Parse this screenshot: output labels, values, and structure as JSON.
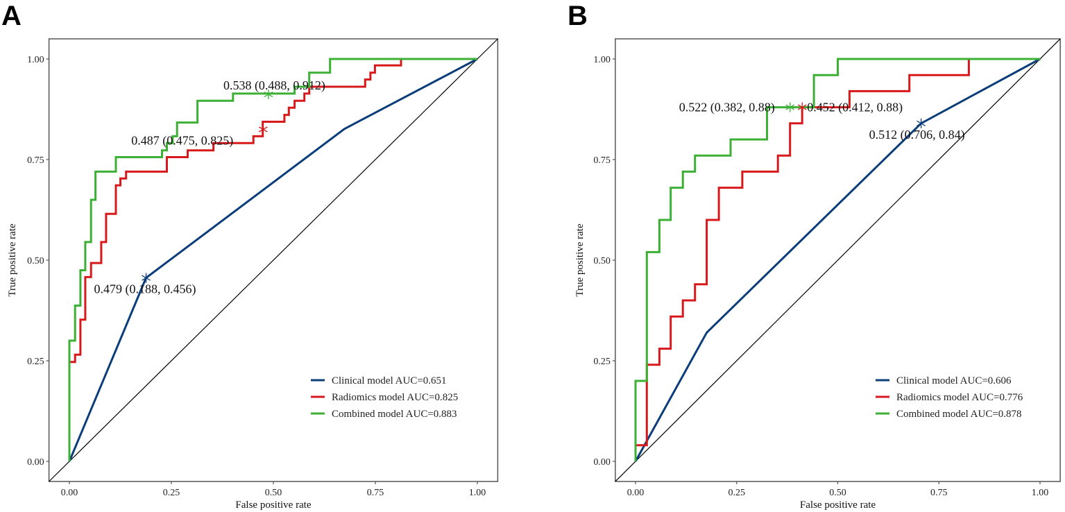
{
  "chart_data": [
    {
      "panel_label": "A",
      "type": "line",
      "xlabel": "False positive rate",
      "ylabel": "True positive rate",
      "xlim": [
        0,
        1
      ],
      "ylim": [
        0,
        1
      ],
      "xticks": [
        "0.00",
        "0.25",
        "0.50",
        "0.75",
        "1.00"
      ],
      "yticks": [
        "0.00",
        "0.25",
        "0.50",
        "0.75",
        "1.00"
      ],
      "legend_position": "bottom-right",
      "reference_line": "diagonal",
      "series": [
        {
          "name": "Clinical model AUC=0.651",
          "color": "#0b3d7a",
          "points": [
            [
              0,
              0
            ],
            [
              0.188,
              0.456
            ],
            [
              0.674,
              0.826
            ],
            [
              1,
              1
            ]
          ],
          "cutoff": {
            "x": 0.188,
            "y": 0.456,
            "label": "0.479 (0.188, 0.456)"
          }
        },
        {
          "name": "Radiomics model AUC=0.825",
          "color": "#d7191c",
          "points": [
            [
              0,
              0
            ],
            [
              0,
              0.247
            ],
            [
              0.014,
              0.247
            ],
            [
              0.014,
              0.265
            ],
            [
              0.027,
              0.265
            ],
            [
              0.027,
              0.352
            ],
            [
              0.039,
              0.352
            ],
            [
              0.039,
              0.458
            ],
            [
              0.053,
              0.458
            ],
            [
              0.053,
              0.493
            ],
            [
              0.078,
              0.493
            ],
            [
              0.078,
              0.545
            ],
            [
              0.09,
              0.545
            ],
            [
              0.09,
              0.615
            ],
            [
              0.114,
              0.615
            ],
            [
              0.114,
              0.686
            ],
            [
              0.125,
              0.686
            ],
            [
              0.125,
              0.703
            ],
            [
              0.139,
              0.703
            ],
            [
              0.139,
              0.72
            ],
            [
              0.239,
              0.72
            ],
            [
              0.239,
              0.756
            ],
            [
              0.29,
              0.756
            ],
            [
              0.29,
              0.773
            ],
            [
              0.353,
              0.773
            ],
            [
              0.353,
              0.791
            ],
            [
              0.451,
              0.791
            ],
            [
              0.451,
              0.808
            ],
            [
              0.474,
              0.808
            ],
            [
              0.474,
              0.844
            ],
            [
              0.527,
              0.844
            ],
            [
              0.527,
              0.861
            ],
            [
              0.538,
              0.861
            ],
            [
              0.538,
              0.879
            ],
            [
              0.552,
              0.879
            ],
            [
              0.552,
              0.896
            ],
            [
              0.576,
              0.896
            ],
            [
              0.576,
              0.914
            ],
            [
              0.588,
              0.914
            ],
            [
              0.588,
              0.931
            ],
            [
              0.725,
              0.931
            ],
            [
              0.725,
              0.949
            ],
            [
              0.738,
              0.949
            ],
            [
              0.738,
              0.966
            ],
            [
              0.749,
              0.966
            ],
            [
              0.749,
              0.984
            ],
            [
              0.813,
              0.984
            ],
            [
              0.813,
              1
            ],
            [
              1,
              1
            ]
          ],
          "cutoff": {
            "x": 0.475,
            "y": 0.825,
            "label": "0.487 (0.475, 0.825)"
          }
        },
        {
          "name": "Combined model AUC=0.883",
          "color": "#3cb034",
          "points": [
            [
              0,
              0
            ],
            [
              0,
              0.3
            ],
            [
              0.014,
              0.3
            ],
            [
              0.014,
              0.387
            ],
            [
              0.027,
              0.387
            ],
            [
              0.027,
              0.475
            ],
            [
              0.039,
              0.475
            ],
            [
              0.039,
              0.545
            ],
            [
              0.053,
              0.545
            ],
            [
              0.053,
              0.65
            ],
            [
              0.064,
              0.65
            ],
            [
              0.064,
              0.72
            ],
            [
              0.114,
              0.72
            ],
            [
              0.114,
              0.756
            ],
            [
              0.227,
              0.756
            ],
            [
              0.227,
              0.773
            ],
            [
              0.239,
              0.773
            ],
            [
              0.239,
              0.791
            ],
            [
              0.253,
              0.791
            ],
            [
              0.253,
              0.808
            ],
            [
              0.264,
              0.808
            ],
            [
              0.264,
              0.842
            ],
            [
              0.314,
              0.842
            ],
            [
              0.314,
              0.896
            ],
            [
              0.401,
              0.896
            ],
            [
              0.401,
              0.914
            ],
            [
              0.552,
              0.914
            ],
            [
              0.552,
              0.931
            ],
            [
              0.588,
              0.931
            ],
            [
              0.588,
              0.966
            ],
            [
              0.639,
              0.966
            ],
            [
              0.639,
              1
            ],
            [
              1,
              1
            ]
          ],
          "cutoff": {
            "x": 0.488,
            "y": 0.912,
            "label": "0.538 (0.488, 0.912)"
          }
        }
      ]
    },
    {
      "panel_label": "B",
      "type": "line",
      "xlabel": "False positive rate",
      "ylabel": "True positive rate",
      "xlim": [
        0,
        1
      ],
      "ylim": [
        0,
        1
      ],
      "xticks": [
        "0.00",
        "0.25",
        "0.50",
        "0.75",
        "1.00"
      ],
      "yticks": [
        "0.00",
        "0.25",
        "0.50",
        "0.75",
        "1.00"
      ],
      "legend_position": "bottom-right",
      "reference_line": "diagonal",
      "series": [
        {
          "name": "Clinical model AUC=0.606",
          "color": "#0b3d7a",
          "points": [
            [
              0,
              0
            ],
            [
              0.176,
              0.32
            ],
            [
              0.706,
              0.84
            ],
            [
              1,
              1
            ]
          ],
          "cutoff": {
            "x": 0.706,
            "y": 0.84,
            "label": "0.512 (0.706, 0.84)"
          }
        },
        {
          "name": "Radiomics model AUC=0.776",
          "color": "#d7191c",
          "points": [
            [
              0,
              0
            ],
            [
              0,
              0.04
            ],
            [
              0.028,
              0.04
            ],
            [
              0.028,
              0.24
            ],
            [
              0.059,
              0.24
            ],
            [
              0.059,
              0.28
            ],
            [
              0.087,
              0.28
            ],
            [
              0.087,
              0.36
            ],
            [
              0.117,
              0.36
            ],
            [
              0.117,
              0.4
            ],
            [
              0.147,
              0.4
            ],
            [
              0.147,
              0.44
            ],
            [
              0.176,
              0.44
            ],
            [
              0.176,
              0.6
            ],
            [
              0.206,
              0.6
            ],
            [
              0.206,
              0.68
            ],
            [
              0.264,
              0.68
            ],
            [
              0.264,
              0.72
            ],
            [
              0.352,
              0.72
            ],
            [
              0.352,
              0.76
            ],
            [
              0.382,
              0.76
            ],
            [
              0.382,
              0.84
            ],
            [
              0.412,
              0.84
            ],
            [
              0.412,
              0.88
            ],
            [
              0.529,
              0.88
            ],
            [
              0.529,
              0.92
            ],
            [
              0.677,
              0.92
            ],
            [
              0.677,
              0.96
            ],
            [
              0.824,
              0.96
            ],
            [
              0.824,
              1
            ],
            [
              1,
              1
            ]
          ],
          "cutoff": {
            "x": 0.412,
            "y": 0.88,
            "label": "0.452 (0.412, 0.88)"
          }
        },
        {
          "name": "Combined model AUC=0.878",
          "color": "#3cb034",
          "points": [
            [
              0,
              0
            ],
            [
              0,
              0.2
            ],
            [
              0.028,
              0.2
            ],
            [
              0.028,
              0.52
            ],
            [
              0.059,
              0.52
            ],
            [
              0.059,
              0.6
            ],
            [
              0.087,
              0.6
            ],
            [
              0.087,
              0.68
            ],
            [
              0.117,
              0.68
            ],
            [
              0.117,
              0.72
            ],
            [
              0.147,
              0.72
            ],
            [
              0.147,
              0.76
            ],
            [
              0.235,
              0.76
            ],
            [
              0.235,
              0.8
            ],
            [
              0.325,
              0.8
            ],
            [
              0.325,
              0.88
            ],
            [
              0.441,
              0.88
            ],
            [
              0.441,
              0.96
            ],
            [
              0.5,
              0.96
            ],
            [
              0.5,
              1
            ],
            [
              1,
              1
            ]
          ],
          "cutoff": {
            "x": 0.382,
            "y": 0.88,
            "label": "0.522 (0.382, 0.88)"
          }
        }
      ]
    }
  ]
}
